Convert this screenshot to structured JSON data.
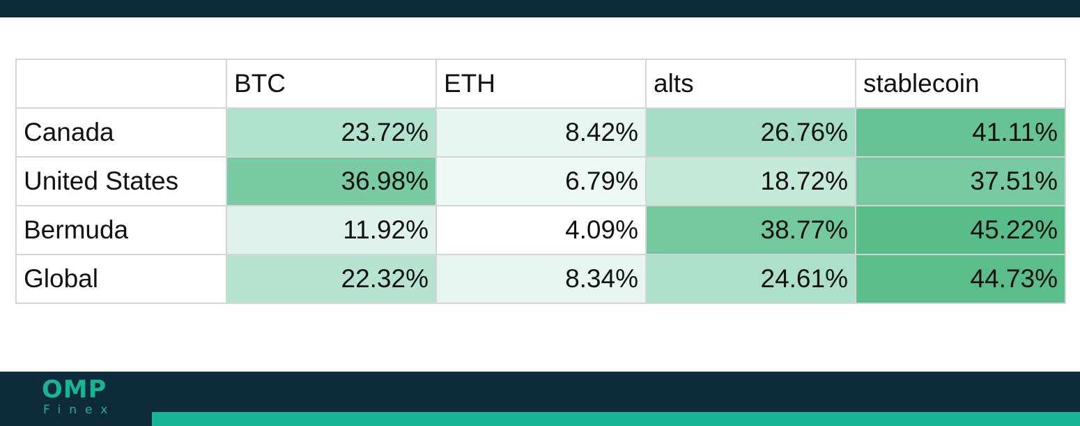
{
  "logo": {
    "mark": "OMP",
    "sub": "Finex"
  },
  "colors": {
    "dark_bar": "#0e2b3b",
    "accent": "#17b594"
  },
  "table": {
    "corner": "",
    "columns": [
      "BTC",
      "ETH",
      "alts",
      "stablecoin"
    ],
    "rows": [
      {
        "label": "Canada",
        "cells": [
          {
            "text": "23.72%",
            "bg": "#b0e2cd"
          },
          {
            "text": "8.42%",
            "bg": "#e7f6ef"
          },
          {
            "text": "26.76%",
            "bg": "#a4dcc4"
          },
          {
            "text": "41.11%",
            "bg": "#68c394"
          }
        ]
      },
      {
        "label": "United States",
        "cells": [
          {
            "text": "36.98%",
            "bg": "#7acba3"
          },
          {
            "text": "6.79%",
            "bg": "#eef9f3"
          },
          {
            "text": "18.72%",
            "bg": "#c5eada"
          },
          {
            "text": "37.51%",
            "bg": "#76c9a1"
          }
        ]
      },
      {
        "label": "Bermuda",
        "cells": [
          {
            "text": "11.92%",
            "bg": "#dff3ea"
          },
          {
            "text": "4.09%",
            "bg": "#ffffff"
          },
          {
            "text": "38.77%",
            "bg": "#73c89e"
          },
          {
            "text": "45.22%",
            "bg": "#58bd88"
          }
        ]
      },
      {
        "label": "Global",
        "cells": [
          {
            "text": "22.32%",
            "bg": "#b6e4d0"
          },
          {
            "text": "8.34%",
            "bg": "#e9f6f0"
          },
          {
            "text": "24.61%",
            "bg": "#ace0c9"
          },
          {
            "text": "44.73%",
            "bg": "#5bbd8a"
          }
        ]
      }
    ]
  }
}
